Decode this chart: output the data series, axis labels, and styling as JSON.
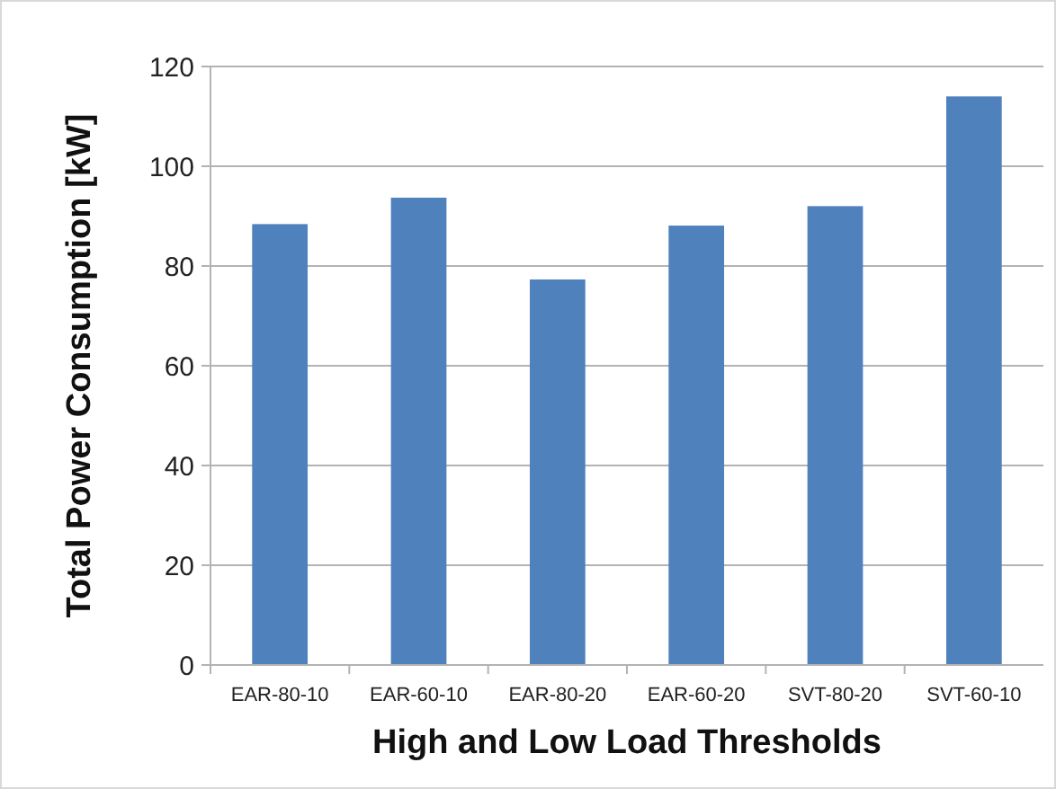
{
  "chart_data": {
    "type": "bar",
    "xlabel": "High and Low Load Thresholds",
    "ylabel": "Total Power Consumption [kW]",
    "categories": [
      "EAR-80-10",
      "EAR-60-10",
      "EAR-80-20",
      "EAR-60-20",
      "SVT-80-20",
      "SVT-60-10"
    ],
    "values": [
      88.4,
      93.7,
      77.3,
      88.1,
      92.0,
      114.0
    ],
    "color": "#4f81bd",
    "ylim": [
      0,
      120
    ],
    "yticks": [
      0,
      20,
      40,
      60,
      80,
      100,
      120
    ],
    "grid": "y"
  }
}
